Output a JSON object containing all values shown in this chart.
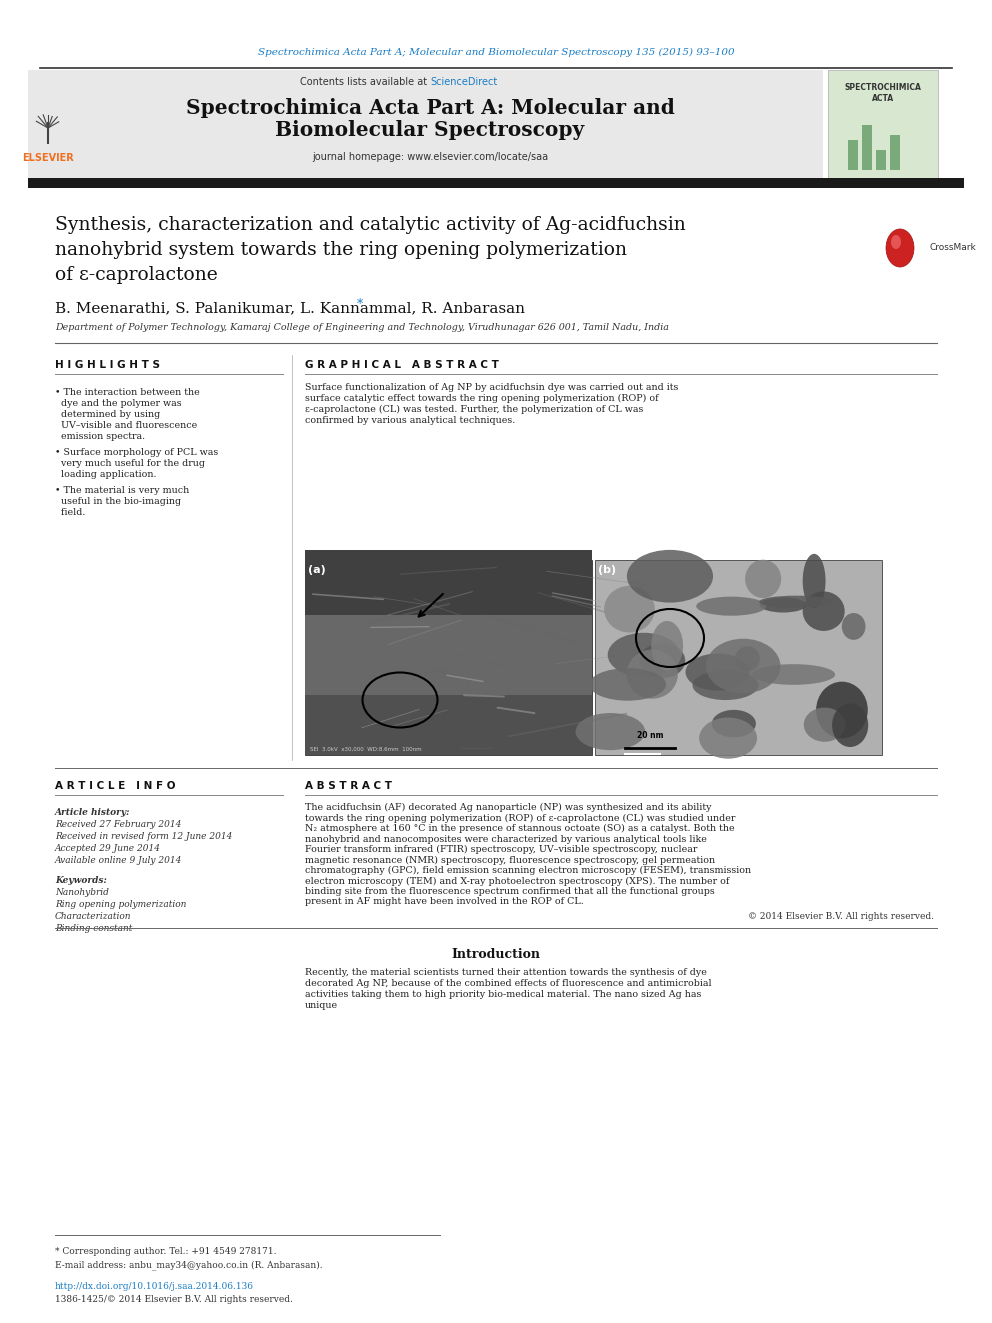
{
  "page_bg": "#ffffff",
  "header_citation": "Spectrochimica Acta Part A; Molecular and Biomolecular Spectroscopy 135 (2015) 93–100",
  "header_citation_color": "#1a7dc4",
  "journal_header_bg": "#e8e8e8",
  "journal_contents_text": "Contents lists available at ",
  "sciencedirect_text": "ScienceDirect",
  "sciencedirect_color": "#1a7dc4",
  "journal_title_line1": "Spectrochimica Acta Part A: Molecular and",
  "journal_title_line2": "Biomolecular Spectroscopy",
  "journal_homepage_text": "journal homepage: www.elsevier.com/locate/saa",
  "thick_bar_color": "#1a1a1a",
  "article_title_line1": "Synthesis, characterization and catalytic activity of Ag-acidfuchsin",
  "article_title_line2": "nanohybrid system towards the ring opening polymerization",
  "article_title_line3": "of ε-caprolactone",
  "authors": "B. Meenarathi, S. Palanikumar, L. Kannammal, R. Anbarasan",
  "affiliation": "Department of Polymer Technology, Kamaraj College of Engineering and Technology, Virudhunagar 626 001, Tamil Nadu, India",
  "highlights_title": "H I G H L I G H T S",
  "graphical_abstract_title": "G R A P H I C A L   A B S T R A C T",
  "highlights_bullets": [
    "The interaction between the dye and the polymer was determined by using UV–visible and fluorescence emission spectra.",
    "Surface morphology of PCL was very much useful for the drug loading application.",
    "The material is very much useful in the bio-imaging field."
  ],
  "graphical_abstract_text": "Surface functionalization of Ag NP by acidfuchsin dye was carried out and its surface catalytic effect towards the ring opening polymerization (ROP) of ε-caprolactone (CL) was tested. Further, the polymerization of CL was confirmed by various analytical techniques.",
  "article_info_title": "A R T I C L E   I N F O",
  "abstract_title": "A B S T R A C T",
  "article_history_label": "Article history:",
  "received_text": "Received 27 February 2014",
  "revised_text": "Received in revised form 12 June 2014",
  "accepted_text": "Accepted 29 June 2014",
  "available_text": "Available online 9 July 2014",
  "keywords_label": "Keywords:",
  "keywords": [
    "Nanohybrid",
    "Ring opening polymerization",
    "Characterization",
    "Binding constant"
  ],
  "abstract_body": "The acidfuchsin (AF) decorated Ag nanoparticle (NP) was synthesized and its ability towards the ring opening polymerization (ROP) of ε-caprolactone (CL) was studied under N₂ atmosphere at 160 °C in the presence of stannous octoate (SO) as a catalyst. Both the nanohybrid and nanocomposites were characterized by various analytical tools like Fourier transform infrared (FTIR) spectroscopy, UV–visible spectroscopy, nuclear magnetic resonance (NMR) spectroscopy, fluorescence spectroscopy, gel permeation chromatography (GPC), field emission scanning electron microscopy (FESEM), transmission electron microscopy (TEM) and X-ray photoelectron spectroscopy (XPS). The number of binding site from the fluorescence spectrum confirmed that all the functional groups present in AF might have been involved in the ROP of CL.",
  "copyright_text": "© 2014 Elsevier B.V. All rights reserved.",
  "intro_title": "Introduction",
  "intro_body": "Recently, the material scientists turned their attention towards the synthesis of dye decorated Ag NP, because of the combined effects of fluorescence and antimicrobial activities taking them to high priority bio-medical material. The nano sized Ag has unique",
  "footnote_asterisk": "* Corresponding author. Tel.: +91 4549 278171.",
  "footnote_email": "E-mail address: anbu_may34@yahoo.co.in (R. Anbarasan).",
  "doi_text": "http://dx.doi.org/10.1016/j.saa.2014.06.136",
  "issn_text": "1386-1425/© 2014 Elsevier B.V. All rights reserved.",
  "doi_color": "#1a7dc4",
  "elsevier_orange": "#f07020",
  "divider_color": "#555555",
  "header_divider_color": "#000000"
}
